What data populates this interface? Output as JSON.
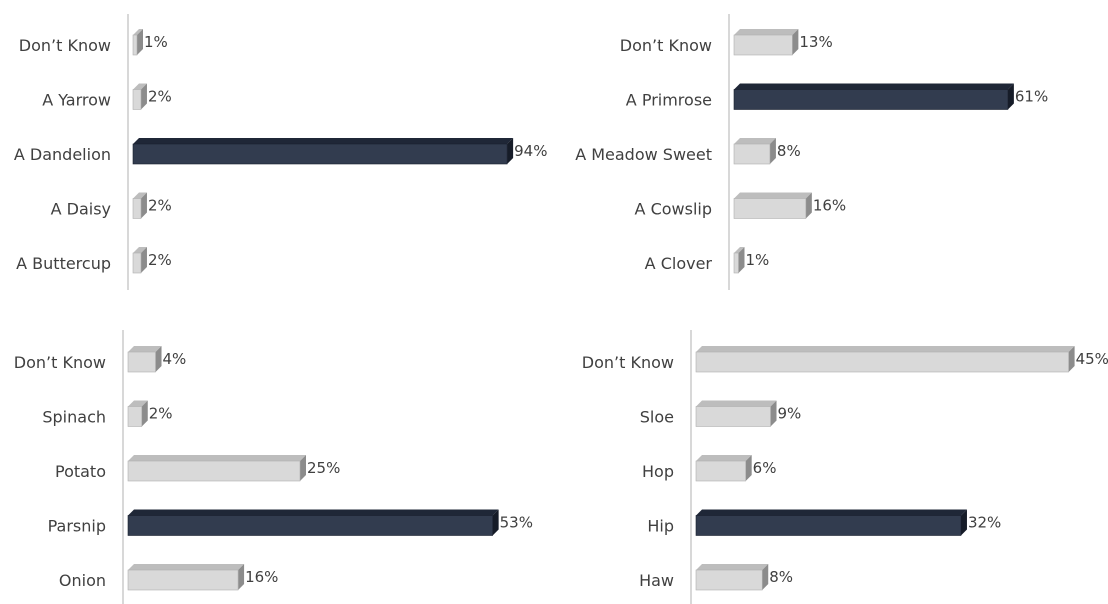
{
  "colors": {
    "highlight_front": "#323c4f",
    "highlight_top": "#1f2737",
    "highlight_side": "#161c28",
    "normal_front": "#d9d9d9",
    "normal_top": "#bdbdbd",
    "normal_side": "#8c8c8c",
    "axis": "#bfbfbf",
    "text": "#404040"
  },
  "chart_data": [
    {
      "type": "bar",
      "orientation": "horizontal",
      "style": "3d",
      "categories": [
        "Don’t Know",
        "A Yarrow",
        "A Dandelion",
        "A Daisy",
        "A Buttercup"
      ],
      "values": [
        1,
        2,
        94,
        2,
        2
      ],
      "value_labels": [
        "1%",
        "2%",
        "94%",
        "2%",
        "2%"
      ],
      "highlight": "A Dandelion",
      "xlim": [
        0,
        100
      ],
      "title": "",
      "xlabel": "",
      "ylabel": "",
      "grid": false,
      "legend": "none"
    },
    {
      "type": "bar",
      "orientation": "horizontal",
      "style": "3d",
      "categories": [
        "Don’t Know",
        "A Primrose",
        "A Meadow Sweet",
        "A Cowslip",
        "A Clover"
      ],
      "values": [
        13,
        61,
        8,
        16,
        1
      ],
      "value_labels": [
        "13%",
        "61%",
        "8%",
        "16%",
        "1%"
      ],
      "highlight": "A Primrose",
      "xlim": [
        0,
        100
      ],
      "title": "",
      "xlabel": "",
      "ylabel": "",
      "grid": false,
      "legend": "none"
    },
    {
      "type": "bar",
      "orientation": "horizontal",
      "style": "3d",
      "categories": [
        "Don’t Know",
        "Spinach",
        "Potato",
        "Parsnip",
        "Onion"
      ],
      "values": [
        4,
        2,
        25,
        53,
        16
      ],
      "value_labels": [
        "4%",
        "2%",
        "25%",
        "53%",
        "16%"
      ],
      "highlight": "Parsnip",
      "xlim": [
        0,
        100
      ],
      "title": "",
      "xlabel": "",
      "ylabel": "",
      "grid": false,
      "legend": "none"
    },
    {
      "type": "bar",
      "orientation": "horizontal",
      "style": "3d",
      "categories": [
        "Don’t Know",
        "Sloe",
        "Hop",
        "Hip",
        "Haw"
      ],
      "values": [
        45,
        9,
        6,
        32,
        8
      ],
      "value_labels": [
        "45%",
        "9%",
        "6%",
        "32%",
        "8%"
      ],
      "highlight": "Hip",
      "xlim": [
        0,
        100
      ],
      "title": "",
      "xlabel": "",
      "ylabel": "",
      "grid": false,
      "legend": "none"
    }
  ]
}
